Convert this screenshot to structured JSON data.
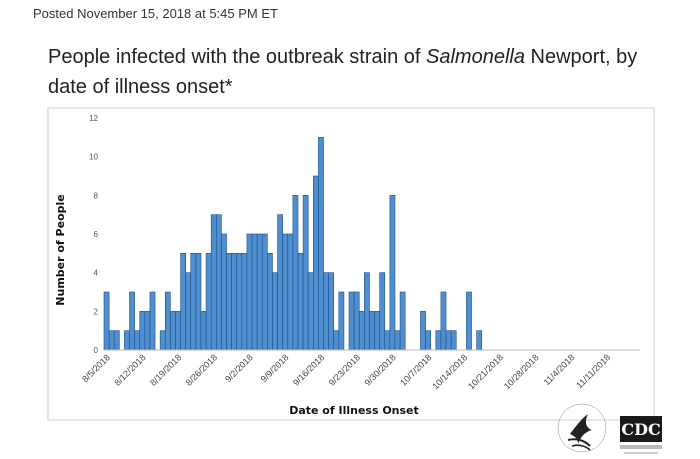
{
  "header": {
    "posted": "Posted November 15, 2018 at 5:45 PM ET"
  },
  "chart_data": {
    "type": "bar",
    "title_parts": [
      "People infected with the outbreak strain of ",
      "Salmonella",
      " Newport, by date of illness onset*"
    ],
    "xlabel": "Date of Illness Onset",
    "ylabel": "Number of People",
    "ylim": [
      0,
      12
    ],
    "yticks": [
      0,
      2,
      4,
      6,
      8,
      10,
      12
    ],
    "xtick_labels": [
      "8/5/2018",
      "8/12/2018",
      "8/19/2018",
      "8/26/2018",
      "9/2/2018",
      "9/9/2018",
      "9/16/2018",
      "9/23/2018",
      "9/30/2018",
      "10/7/2018",
      "10/14/2018",
      "10/21/2018",
      "10/28/2018",
      "11/4/2018",
      "11/11/2018"
    ],
    "start_label": "8/5/2018",
    "values": [
      3,
      1,
      1,
      0,
      1,
      3,
      1,
      2,
      2,
      3,
      0,
      1,
      3,
      2,
      2,
      5,
      4,
      5,
      5,
      2,
      5,
      7,
      7,
      6,
      5,
      5,
      5,
      5,
      6,
      6,
      6,
      6,
      5,
      4,
      7,
      6,
      6,
      8,
      5,
      8,
      4,
      9,
      11,
      4,
      4,
      1,
      3,
      0,
      3,
      3,
      2,
      4,
      2,
      2,
      4,
      1,
      8,
      1,
      3,
      0,
      0,
      0,
      2,
      1,
      0,
      1,
      3,
      1,
      1,
      0,
      0,
      3,
      0,
      1,
      0,
      0,
      0,
      0,
      0,
      0,
      0,
      0,
      0,
      0,
      0,
      0,
      0,
      0,
      0,
      0,
      0,
      0,
      0,
      0,
      0,
      0,
      0,
      0,
      0,
      0,
      0,
      0,
      0,
      0,
      0
    ],
    "grid": false,
    "colors": {
      "bar": "#4f8fd0",
      "bar_edge": "#1f4f86"
    }
  },
  "logos": {
    "hhs_icon": "hhs-eagle-seal-icon",
    "cdc_icon": "cdc-logo-icon",
    "cdc_text": "CDC"
  }
}
